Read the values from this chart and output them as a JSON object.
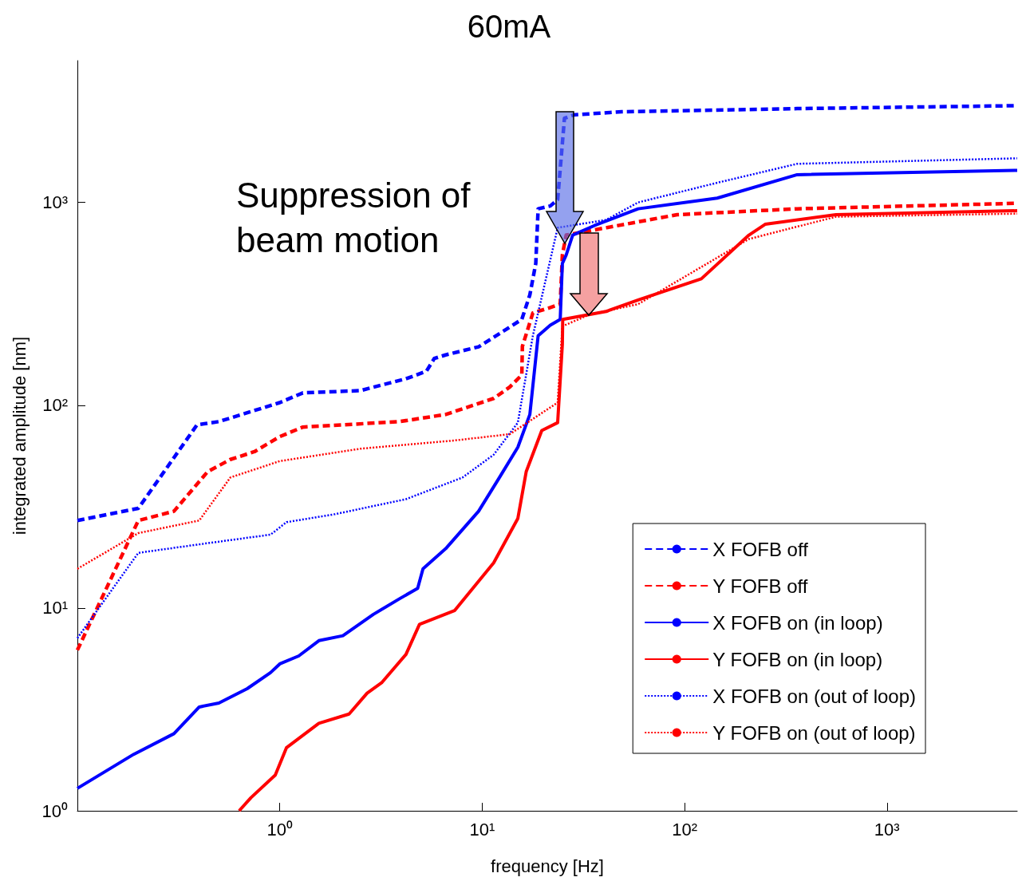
{
  "chart_data": {
    "type": "line",
    "title": "60mA",
    "xlabel": "frequency [Hz]",
    "ylabel": "integrated amplitude [nm]",
    "annotations": [
      "Suppression of beam motion"
    ],
    "log": "xy",
    "grid": false,
    "legend": "bottom right",
    "marker": "none",
    "xlim": [
      0.1,
      4400
    ],
    "ylim": [
      1,
      5000
    ],
    "xticks": [
      {
        "value": 1,
        "label": "10⁰"
      },
      {
        "value": 10,
        "label": "10¹"
      },
      {
        "value": 100,
        "label": "10²"
      },
      {
        "value": 1000,
        "label": "10³"
      }
    ],
    "yticks": [
      {
        "value": 1,
        "label": "10⁰"
      },
      {
        "value": 10,
        "label": "10¹"
      },
      {
        "value": 100,
        "label": "10²"
      },
      {
        "value": 1000,
        "label": "10³"
      }
    ],
    "series": [
      {
        "name": "X FOFB off",
        "color": "#0000ff",
        "line_style": "dashed",
        "x": [
          0.1,
          0.2,
          0.39,
          0.5,
          1.0,
          1.3,
          2.5,
          4.2,
          5.3,
          5.8,
          6.6,
          9.6,
          13.7,
          15.7,
          17.2,
          18.4,
          18.9,
          21.7,
          23.6,
          25.5,
          28.3,
          49,
          360,
          4400
        ],
        "values": [
          27,
          31,
          80,
          83,
          103,
          115,
          118,
          135,
          147,
          170,
          177,
          194,
          243,
          265,
          350,
          500,
          930,
          960,
          1030,
          2600,
          2700,
          2800,
          2900,
          3000
        ]
      },
      {
        "name": "Y FOFB off",
        "color": "#ff0000",
        "line_style": "dashed",
        "x": [
          0.1,
          0.2,
          0.3,
          0.44,
          0.57,
          0.75,
          1.0,
          1.3,
          3.9,
          6.6,
          11.4,
          13.7,
          15.7,
          15.8,
          17.8,
          21.7,
          24.3,
          24.9,
          26,
          41,
          92,
          360,
          4400
        ],
        "values": [
          6.2,
          27,
          30,
          47,
          54,
          59,
          70,
          78,
          83,
          90,
          108,
          123,
          141,
          195,
          285,
          303,
          315,
          550,
          690,
          750,
          870,
          930,
          990
        ]
      },
      {
        "name": "X FOFB on (in loop)",
        "color": "#0000ff",
        "line_style": "solid",
        "x": [
          0.1,
          0.19,
          0.3,
          0.4,
          0.5,
          0.69,
          0.9,
          1.0,
          1.24,
          1.56,
          2.05,
          2.9,
          3.9,
          4.8,
          5.1,
          6.6,
          9.6,
          12,
          15,
          17.2,
          18.9,
          21.7,
          24.3,
          24.9,
          26,
          28,
          36,
          59,
          145,
          360,
          4400
        ],
        "values": [
          1.29,
          1.9,
          2.4,
          3.25,
          3.4,
          4.0,
          4.8,
          5.3,
          5.8,
          6.9,
          7.3,
          9.3,
          11.1,
          12.5,
          15.6,
          19.6,
          30,
          43,
          62,
          90,
          220,
          248,
          265,
          500,
          550,
          690,
          770,
          930,
          1050,
          1370,
          1440
        ]
      },
      {
        "name": "Y FOFB on (in loop)",
        "color": "#ff0000",
        "line_style": "solid",
        "x": [
          0.63,
          0.72,
          0.95,
          1.08,
          1.56,
          2.2,
          2.7,
          3.2,
          4.2,
          4.9,
          7.3,
          11.4,
          15,
          16.5,
          19.7,
          23.6,
          24.9,
          25,
          41,
          59,
          121,
          208,
          250,
          560,
          4400
        ],
        "values": [
          1.0,
          1.16,
          1.5,
          2.05,
          2.7,
          3.0,
          3.8,
          4.3,
          5.9,
          8.3,
          9.7,
          16.7,
          27.6,
          47,
          75,
          82,
          200,
          265,
          290,
          330,
          420,
          690,
          780,
          870,
          910
        ]
      },
      {
        "name": "X FOFB on (out of loop)",
        "color": "#0000ff",
        "line_style": "dotted",
        "x": [
          0.1,
          0.2,
          0.4,
          0.9,
          1.08,
          1.87,
          4.2,
          8,
          11.4,
          15,
          17.8,
          23.6,
          41,
          59,
          145,
          360,
          4400
        ],
        "values": [
          7.1,
          18.7,
          20.6,
          23,
          26.5,
          29,
          34.4,
          44,
          57,
          82,
          220,
          750,
          820,
          1000,
          1250,
          1550,
          1650
        ]
      },
      {
        "name": "Y FOFB on (out of loop)",
        "color": "#ff0000",
        "line_style": "dotted",
        "x": [
          0.1,
          0.2,
          0.4,
          0.57,
          1.0,
          2.5,
          7.3,
          13.7,
          23.6,
          24.9,
          34,
          59,
          208,
          560,
          4400
        ],
        "values": [
          15.6,
          23.4,
          27,
          44,
          53,
          61,
          67,
          72,
          103,
          245,
          280,
          315,
          660,
          850,
          880
        ]
      }
    ]
  }
}
